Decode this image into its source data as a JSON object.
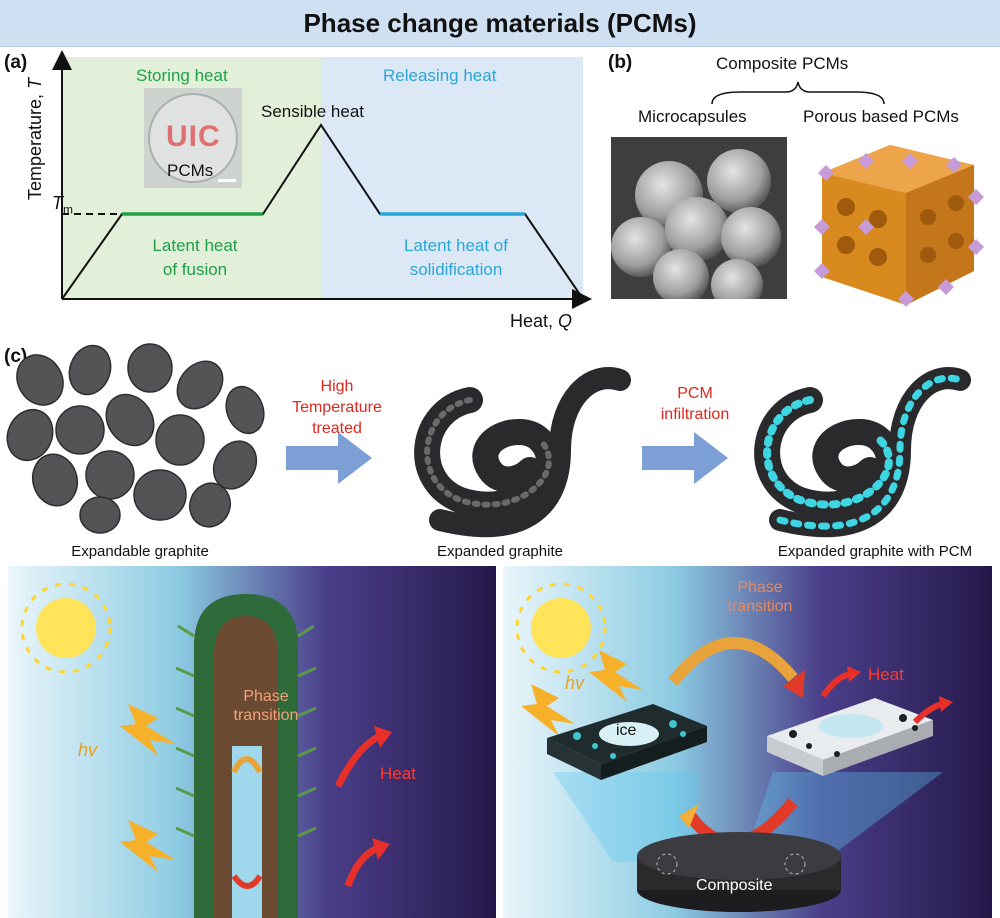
{
  "title": "Phase change materials (PCMs)",
  "panel_a": {
    "label": "(a)",
    "y_axis_label": "Temperature,",
    "y_axis_symbol": "T",
    "x_axis_label": "Heat,",
    "x_axis_symbol": "Q",
    "tm_symbol": "T",
    "tm_subscript": "m",
    "storing_heat": "Storing heat",
    "releasing_heat": "Releasing heat",
    "sensible_heat": "Sensible heat",
    "latent_fusion_line1": "Latent heat",
    "latent_fusion_line2": "of fusion",
    "latent_solid_line1": "Latent heat of",
    "latent_solid_line2": "solidification",
    "photo_logo": "UIC",
    "photo_label": "PCMs",
    "colors": {
      "storing_bg": "#e3f0d9",
      "releasing_bg": "#dce8f5",
      "fusion_line": "#1fa049",
      "solid_line": "#2aa6d8"
    }
  },
  "panel_b": {
    "label": "(b)",
    "group_label": "Composite PCMs",
    "left_label": "Microcapsules",
    "right_label": "Porous based PCMs"
  },
  "panel_c": {
    "label": "(c)",
    "step1_caption": "Expandable graphite",
    "step2_caption": "Expanded graphite",
    "step3_caption": "Expanded graphite with PCM",
    "arrow1_line1": "High",
    "arrow1_line2": "Temperature",
    "arrow1_line3": "treated",
    "arrow2_line1": "PCM",
    "arrow2_line2": "infiltration",
    "left_scene": {
      "hv": "hv",
      "phase_line1": "Phase",
      "phase_line2": "transition",
      "heat": "Heat"
    },
    "right_scene": {
      "hv": "hv",
      "phase_line1": "Phase",
      "phase_line2": "transition",
      "heat": "Heat",
      "ice": "ice",
      "composite": "Composite"
    }
  }
}
